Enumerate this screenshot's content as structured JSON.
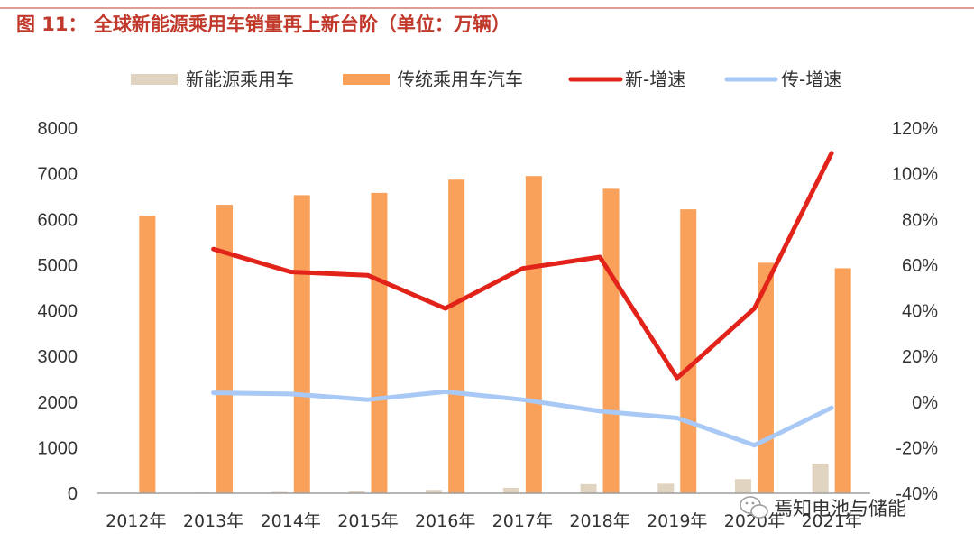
{
  "colors": {
    "title": "#C0392B",
    "nev_bar": "#E0D3BF",
    "ice_bar": "#F9A15A",
    "nev_growth": "#E2231A",
    "ice_growth": "#A8C8F5",
    "axis": "#9E9E9E",
    "text": "#333333"
  },
  "chart_data": {
    "type": "bar",
    "title": "图 11：  全球新能源乘用车销量再上新台阶（单位：万辆）",
    "categories": [
      "2012年",
      "2013年",
      "2014年",
      "2015年",
      "2016年",
      "2017年",
      "2018年",
      "2019年",
      "2020年",
      "2021年"
    ],
    "series": [
      {
        "name": "新能源乘用车",
        "type": "bar",
        "axis": "left",
        "values": [
          5,
          15,
          30,
          50,
          75,
          120,
          200,
          210,
          310,
          650
        ]
      },
      {
        "name": "传统乘用车汽车",
        "type": "bar",
        "axis": "left",
        "values": [
          6080,
          6320,
          6530,
          6580,
          6870,
          6950,
          6670,
          6220,
          5050,
          4930
        ]
      },
      {
        "name": "新-增速",
        "type": "line",
        "axis": "right",
        "values": [
          null,
          0.67,
          0.57,
          0.555,
          0.41,
          0.585,
          0.635,
          0.105,
          0.41,
          1.09
        ]
      },
      {
        "name": "传-增速",
        "type": "line",
        "axis": "right",
        "values": [
          null,
          0.04,
          0.035,
          0.01,
          0.045,
          0.01,
          -0.04,
          -0.07,
          -0.19,
          -0.025
        ]
      }
    ],
    "ylim_left": [
      0,
      8000
    ],
    "yticks_left": [
      "0",
      "1000",
      "2000",
      "3000",
      "4000",
      "5000",
      "6000",
      "7000",
      "8000"
    ],
    "ylim_right": [
      -0.4,
      1.2
    ],
    "yticks_right": [
      "-40%",
      "-20%",
      "0%",
      "20%",
      "40%",
      "60%",
      "80%",
      "100%",
      "120%"
    ],
    "legend_position": "top-center"
  },
  "watermark": {
    "text": "焉知电池与储能",
    "icon": "wechat-icon"
  }
}
